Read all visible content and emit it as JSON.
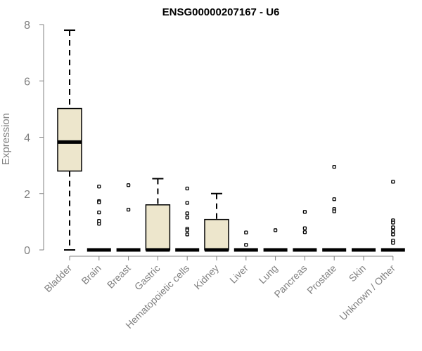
{
  "chart_data": {
    "type": "boxplot",
    "title": "ENSG00000207167 - U6",
    "xlabel": "",
    "ylabel": "Expression",
    "ylim": [
      0,
      8
    ],
    "yticks": [
      0,
      2,
      4,
      6,
      8
    ],
    "grid": false,
    "categories": [
      "Bladder",
      "Brain",
      "Breast",
      "Gastric",
      "Hematopoietic cells",
      "Kidney",
      "Liver",
      "Lung",
      "Pancreas",
      "Prostate",
      "Skin",
      "Unknown / Other"
    ],
    "series": [
      {
        "category": "Bladder",
        "whisker_low": 0.0,
        "q1": 2.8,
        "median": 3.83,
        "q3": 5.02,
        "whisker_high": 7.8,
        "outliers": []
      },
      {
        "category": "Brain",
        "whisker_low": 0.0,
        "q1": 0.0,
        "median": 0.0,
        "q3": 0.0,
        "whisker_high": 0.0,
        "outliers": [
          2.25,
          1.73,
          1.69,
          1.33,
          1.03,
          0.93
        ]
      },
      {
        "category": "Breast",
        "whisker_low": 0.0,
        "q1": 0.0,
        "median": 0.0,
        "q3": 0.0,
        "whisker_high": 0.0,
        "outliers": [
          2.3,
          1.43
        ]
      },
      {
        "category": "Gastric",
        "whisker_low": 0.0,
        "q1": 0.0,
        "median": 0.0,
        "q3": 1.6,
        "whisker_high": 2.53,
        "outliers": []
      },
      {
        "category": "Hematopoietic cells",
        "whisker_low": 0.0,
        "q1": 0.0,
        "median": 0.0,
        "q3": 0.0,
        "whisker_high": 0.0,
        "outliers": [
          2.18,
          1.67,
          1.3,
          1.15,
          0.75,
          0.7,
          0.55
        ]
      },
      {
        "category": "Kidney",
        "whisker_low": 0.0,
        "q1": 0.0,
        "median": 0.0,
        "q3": 1.08,
        "whisker_high": 2.0,
        "outliers": []
      },
      {
        "category": "Liver",
        "whisker_low": 0.0,
        "q1": 0.0,
        "median": 0.0,
        "q3": 0.0,
        "whisker_high": 0.0,
        "outliers": [
          0.62,
          0.18
        ]
      },
      {
        "category": "Lung",
        "whisker_low": 0.0,
        "q1": 0.0,
        "median": 0.0,
        "q3": 0.0,
        "whisker_high": 0.0,
        "outliers": [
          0.7
        ]
      },
      {
        "category": "Pancreas",
        "whisker_low": 0.0,
        "q1": 0.0,
        "median": 0.0,
        "q3": 0.0,
        "whisker_high": 0.0,
        "outliers": [
          1.35,
          0.77,
          0.63
        ]
      },
      {
        "category": "Prostate",
        "whisker_low": 0.0,
        "q1": 0.0,
        "median": 0.0,
        "q3": 0.0,
        "whisker_high": 0.0,
        "outliers": [
          2.95,
          1.8,
          1.45,
          1.37
        ]
      },
      {
        "category": "Skin",
        "whisker_low": 0.0,
        "q1": 0.0,
        "median": 0.0,
        "q3": 0.0,
        "whisker_high": 0.0,
        "outliers": []
      },
      {
        "category": "Unknown / Other",
        "whisker_low": 0.0,
        "q1": 0.0,
        "median": 0.0,
        "q3": 0.0,
        "whisker_high": 0.0,
        "outliers": [
          2.42,
          1.05,
          0.97,
          0.8,
          0.67,
          0.55,
          0.33,
          0.25
        ]
      }
    ],
    "colors": {
      "box_fill": "#ede6cc",
      "box_stroke": "#000000",
      "median": "#000000",
      "axis": "#808080",
      "tick_labels": "#808080",
      "title": "#000000"
    }
  }
}
